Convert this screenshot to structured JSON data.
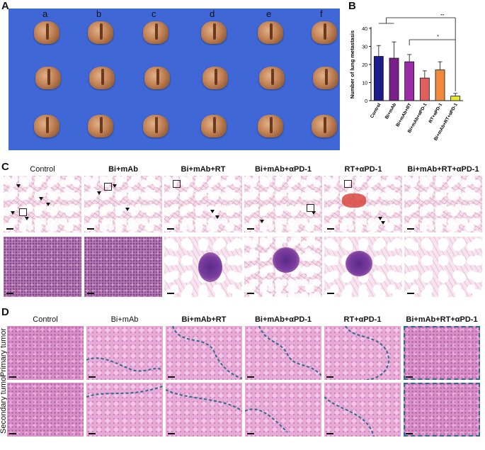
{
  "panels": {
    "a": "A",
    "b": "B",
    "c": "C",
    "d": "D"
  },
  "panel_a": {
    "column_letters": [
      "a",
      "b",
      "c",
      "d",
      "e",
      "f"
    ]
  },
  "chart_data": {
    "type": "bar",
    "ylabel": "Number of lung metastasis",
    "ylim": [
      0,
      40
    ],
    "yticks": [
      0,
      10,
      20,
      30,
      40
    ],
    "categories": [
      "Control",
      "Bi+mAb",
      "Bi+mAb+RT",
      "Bi+mAb+αPD-1",
      "RT+αPD-1",
      "Bi+mAb+RT+αPD-1"
    ],
    "values": [
      24.5,
      23.5,
      21.5,
      12.5,
      17,
      2.5
    ],
    "errors": [
      6,
      9,
      4,
      4,
      4.5,
      1.5
    ],
    "colors": [
      "#1c1c8c",
      "#7a1f8a",
      "#9b2ca8",
      "#e0605f",
      "#f08a3a",
      "#e6e635"
    ],
    "significance": [
      {
        "label": "**",
        "to_index": 5
      },
      {
        "label": "*",
        "to_index": 5
      }
    ]
  },
  "panel_c": {
    "groups": [
      "Control",
      "Bi+mAb",
      "Bi+mAb+RT",
      "Bi+mAb+αPD-1",
      "RT+αPD-1",
      "Bi+mAb+RT+αPD-1"
    ]
  },
  "panel_d": {
    "groups": [
      "Control",
      "Bi+mAb",
      "Bi+mAb+RT",
      "Bi+mAb+αPD-1",
      "RT+αPD-1",
      "Bi+mAb+RT+αPD-1"
    ],
    "rows": [
      "Primary tumor",
      "Secondary tumor"
    ]
  }
}
